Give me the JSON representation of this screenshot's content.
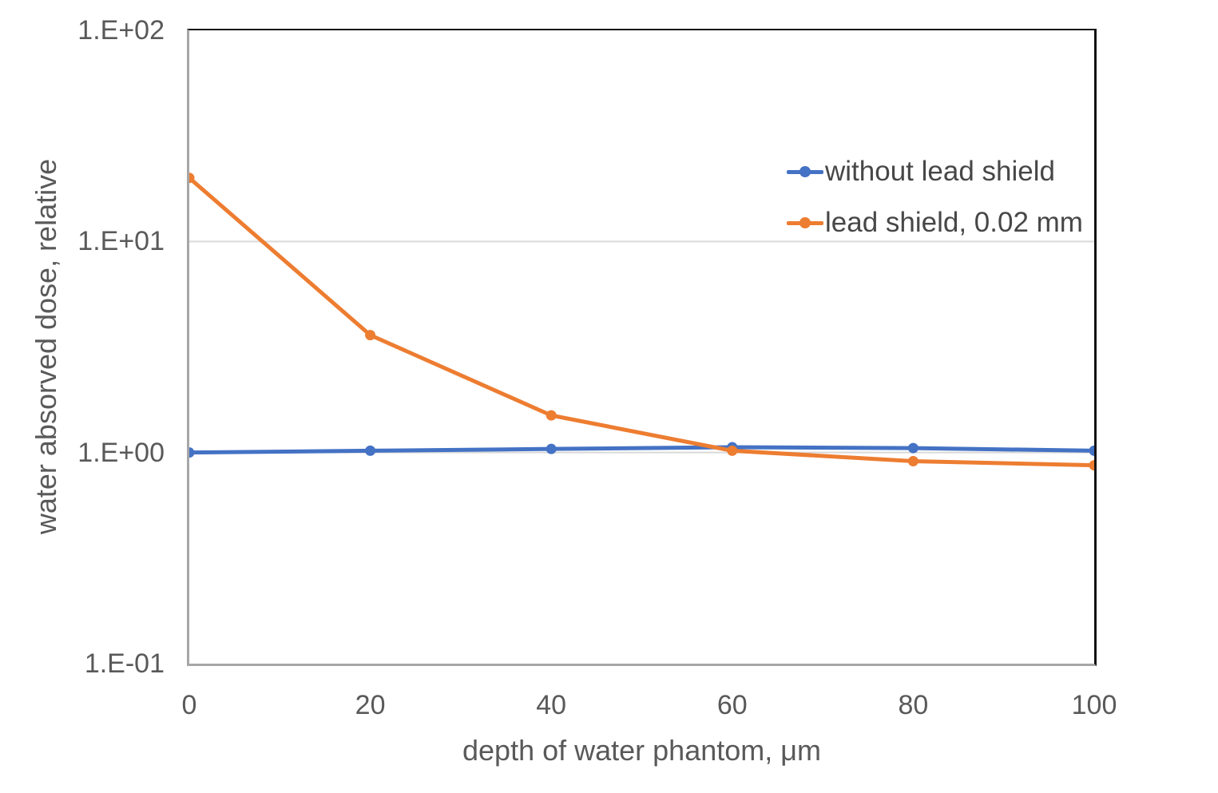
{
  "chart_data": {
    "type": "line",
    "x": [
      0,
      20,
      40,
      60,
      80,
      100
    ],
    "series": [
      {
        "name": "without lead shield",
        "color": "#4472C4",
        "values": [
          1.0,
          1.02,
          1.04,
          1.06,
          1.05,
          1.02
        ]
      },
      {
        "name": "lead shield, 0.02 mm",
        "color": "#ED7D31",
        "values": [
          20,
          3.6,
          1.5,
          1.02,
          0.91,
          0.87
        ]
      }
    ],
    "title": "",
    "xlabel": "depth of water phantom, μm",
    "ylabel": "water absorved dose, relative",
    "xlim": [
      0,
      100
    ],
    "ylim": [
      0.1,
      100
    ],
    "yscale": "log",
    "xticks": [
      {
        "label": "0",
        "value": 0
      },
      {
        "label": "20",
        "value": 20
      },
      {
        "label": "40",
        "value": 40
      },
      {
        "label": "60",
        "value": 60
      },
      {
        "label": "80",
        "value": 80
      },
      {
        "label": "100",
        "value": 100
      }
    ],
    "yticks": [
      {
        "label": "1.E+02",
        "value": 100
      },
      {
        "label": "1.E+01",
        "value": 10
      },
      {
        "label": "1.E+00",
        "value": 1
      },
      {
        "label": "1.E-01",
        "value": 0.1
      }
    ],
    "grid_values": [
      10,
      1
    ],
    "grid_on": true,
    "legend_position": "inside-top-center",
    "colors": {
      "grid": "#D9D9D9",
      "axis_gray": "#A6A6A6",
      "frame_black": "#111111",
      "tick_text": "#595959",
      "legend_text": "#474747",
      "background": "#FFFFFF"
    }
  }
}
